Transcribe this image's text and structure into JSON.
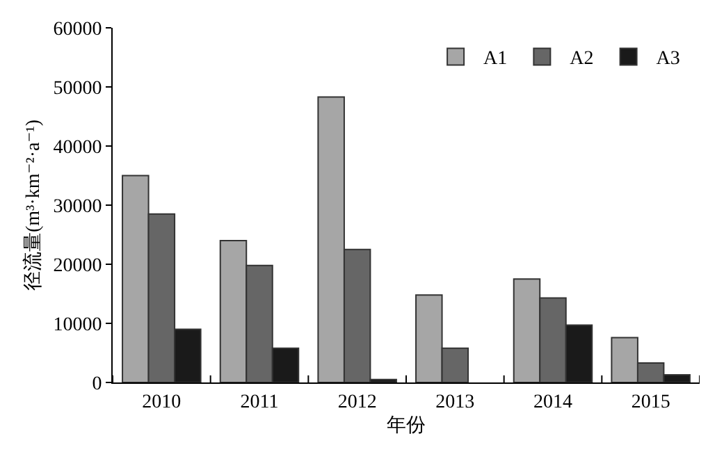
{
  "chart_data": {
    "type": "bar",
    "xlabel": "年份",
    "ylabel": "径流量(m³·km⁻²·a⁻¹)",
    "categories": [
      "2010",
      "2011",
      "2012",
      "2013",
      "2014",
      "2015"
    ],
    "series": [
      {
        "name": "A1",
        "color": "#a6a6a6",
        "values": [
          35000,
          24000,
          48300,
          14800,
          17500,
          7600
        ]
      },
      {
        "name": "A2",
        "color": "#666666",
        "values": [
          28500,
          19800,
          22500,
          5800,
          14300,
          3300
        ]
      },
      {
        "name": "A3",
        "color": "#1a1a1a",
        "values": [
          9000,
          5800,
          500,
          null,
          9700,
          1300
        ]
      }
    ],
    "ylim": [
      0,
      60000
    ],
    "yticks": [
      0,
      10000,
      20000,
      30000,
      40000,
      50000,
      60000
    ],
    "grid": false,
    "legend": "top right"
  }
}
